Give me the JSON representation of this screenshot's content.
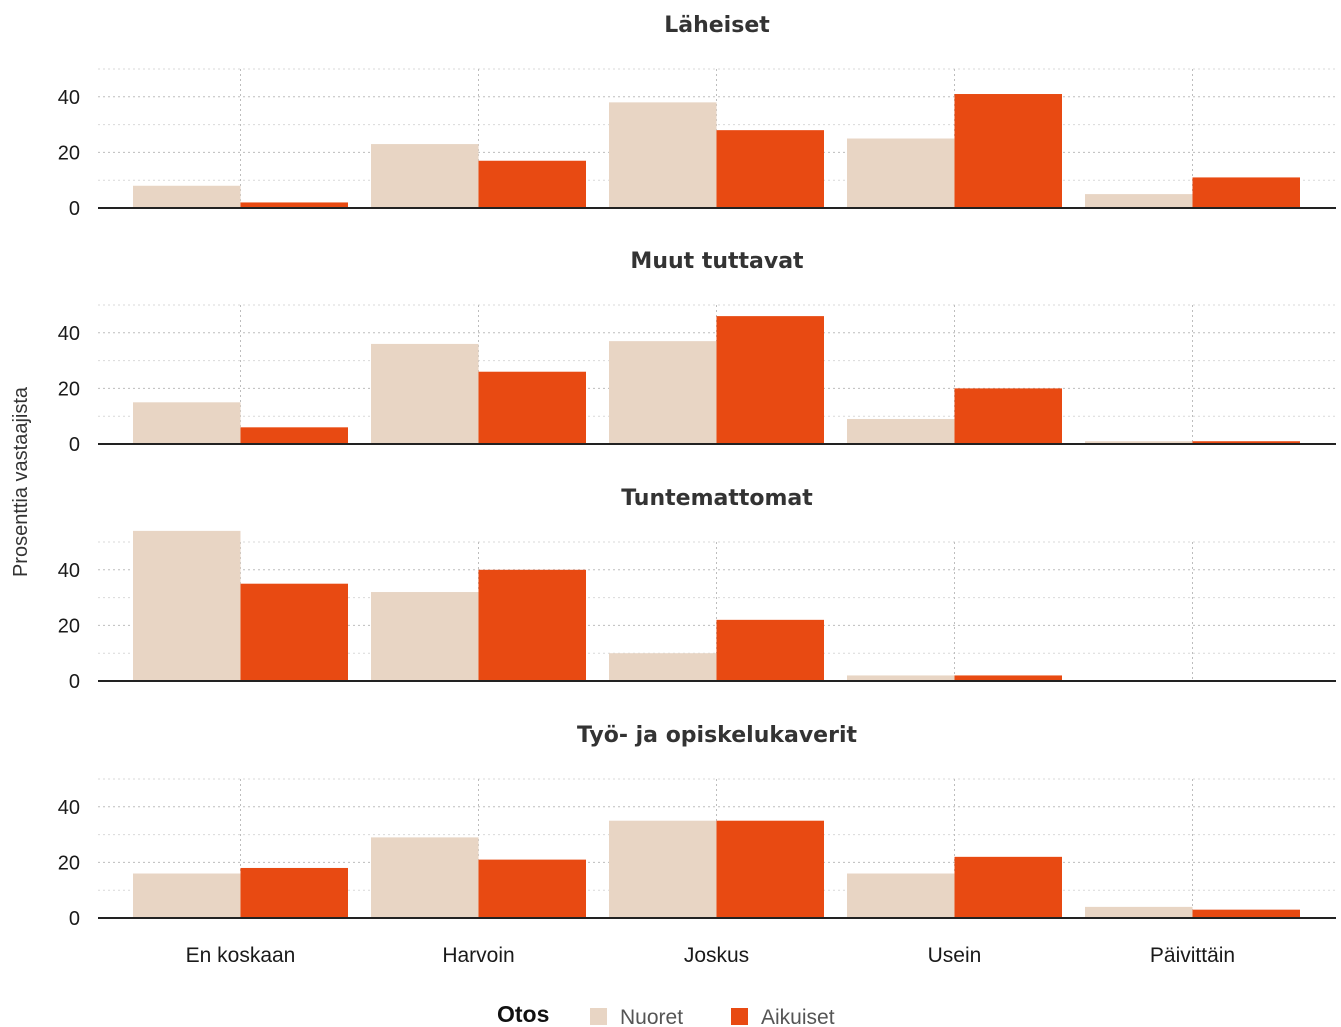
{
  "chart_data": {
    "type": "bar",
    "ylabel": "Prosenttia vastaajista",
    "ylim": [
      0,
      50
    ],
    "y_ticks": [
      0,
      20,
      40
    ],
    "categories": [
      "En koskaan",
      "Harvoin",
      "Joskus",
      "Usein",
      "Päivittäin"
    ],
    "legend": {
      "title": "Otos",
      "placement": "bottom",
      "items": [
        {
          "name": "Nuoret",
          "color": "#e8d5c4"
        },
        {
          "name": "Aikuiset",
          "color": "#e84a12"
        }
      ]
    },
    "grid": true,
    "panels": [
      {
        "title": "Läheiset",
        "series": [
          {
            "name": "Nuoret",
            "values": [
              8,
              23,
              38,
              25,
              5
            ]
          },
          {
            "name": "Aikuiset",
            "values": [
              2,
              17,
              28,
              41,
              11
            ]
          }
        ]
      },
      {
        "title": "Muut tuttavat",
        "series": [
          {
            "name": "Nuoret",
            "values": [
              15,
              36,
              37,
              9,
              1
            ]
          },
          {
            "name": "Aikuiset",
            "values": [
              6,
              26,
              46,
              20,
              1
            ]
          }
        ]
      },
      {
        "title": "Tuntemattomat",
        "series": [
          {
            "name": "Nuoret",
            "values": [
              54,
              32,
              10,
              2,
              0
            ]
          },
          {
            "name": "Aikuiset",
            "values": [
              35,
              40,
              22,
              2,
              0
            ]
          }
        ]
      },
      {
        "title": "Työ-  ja  opiskelukaverit",
        "series": [
          {
            "name": "Nuoret",
            "values": [
              16,
              29,
              35,
              16,
              4
            ]
          },
          {
            "name": "Aikuiset",
            "values": [
              18,
              21,
              35,
              22,
              3
            ]
          }
        ]
      }
    ]
  }
}
